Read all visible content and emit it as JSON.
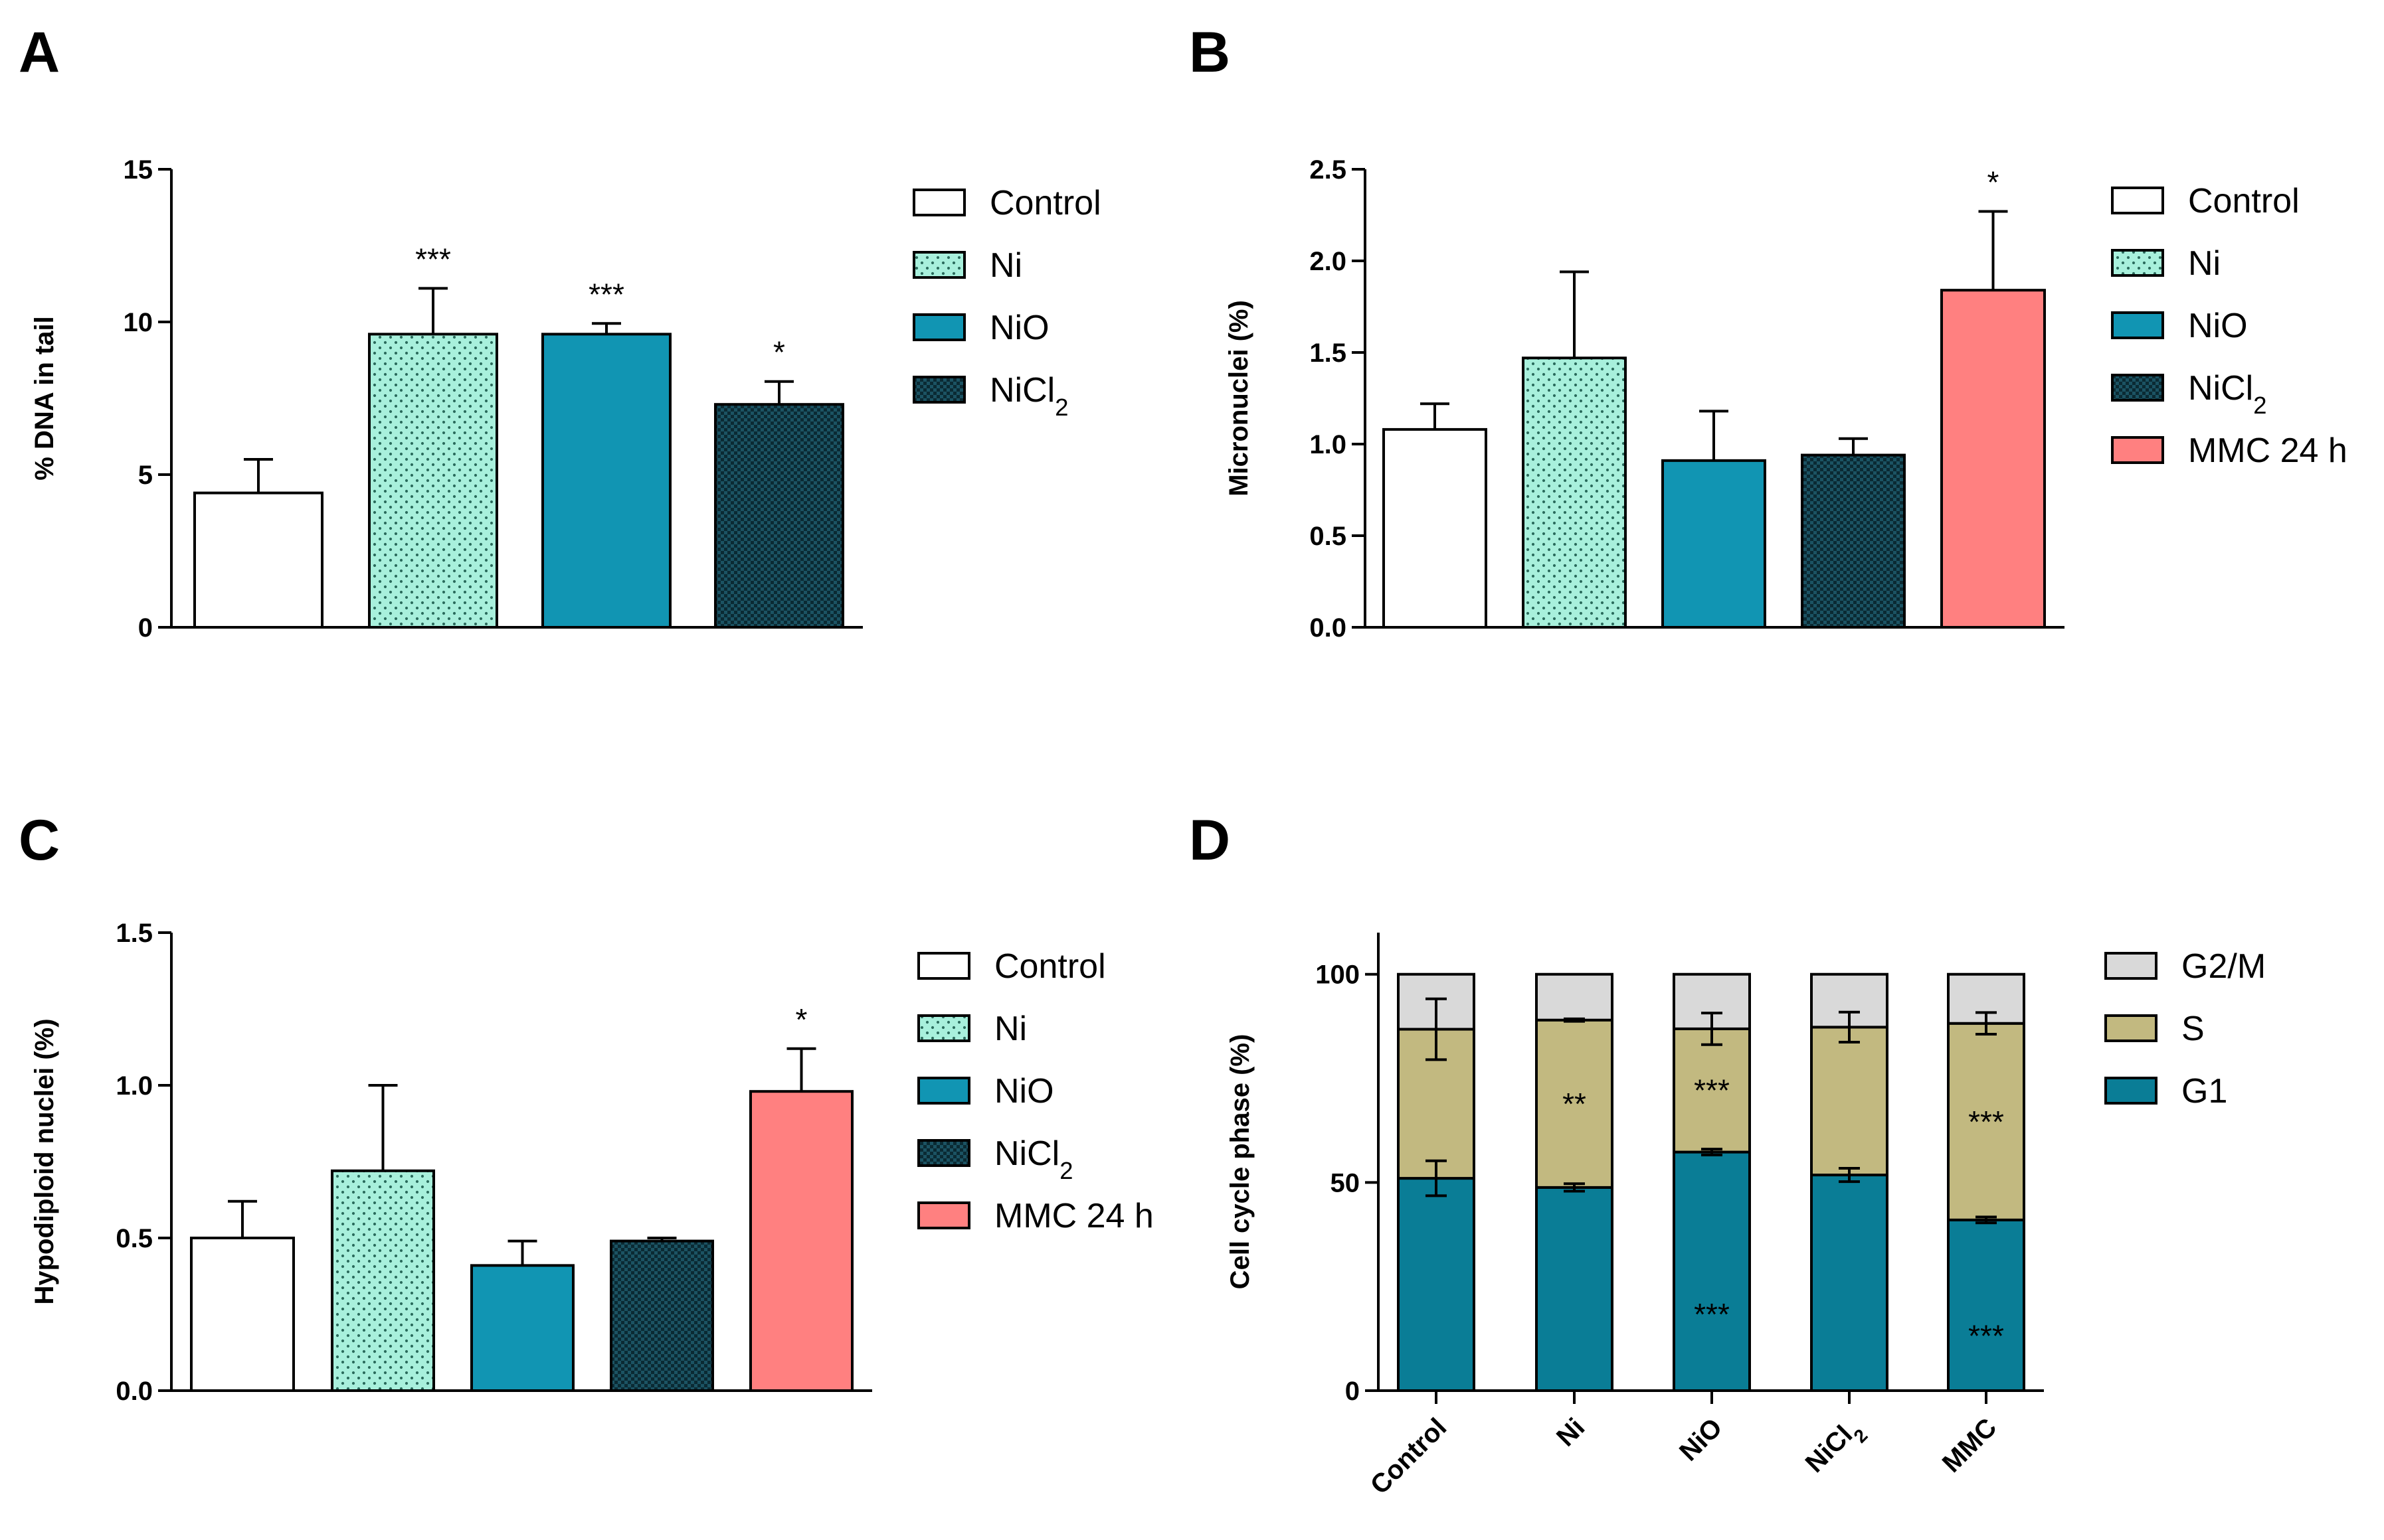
{
  "colors": {
    "control": "#ffffff",
    "ni": "#a8f0dc",
    "nio": "#1195b3",
    "nicl2": "#0d2f3a",
    "mmc": "#ff8080",
    "g1": "#0a7d96",
    "s": "#c2b980",
    "g2m": "#d9d9d9"
  },
  "chart_data": [
    {
      "panel": "A",
      "type": "bar",
      "ylabel": "% DNA in tail",
      "ylim": [
        0,
        15
      ],
      "yticks": [
        "0",
        "5",
        "10",
        "15"
      ],
      "categories": [
        "Control",
        "Ni",
        "NiO",
        "NiCl2"
      ],
      "values": [
        4.4,
        9.6,
        9.6,
        7.3
      ],
      "errors": [
        1.1,
        1.5,
        0.35,
        0.75
      ],
      "significance": [
        "",
        "***",
        "***",
        "*"
      ],
      "legend": [
        {
          "label": "Control",
          "sub": ""
        },
        {
          "label": "Ni",
          "sub": ""
        },
        {
          "label": "NiO",
          "sub": ""
        },
        {
          "label": "NiCl",
          "sub": "2"
        }
      ]
    },
    {
      "panel": "B",
      "type": "bar",
      "ylabel": "Micronuclei (%)",
      "ylim": [
        0,
        2.5
      ],
      "yticks": [
        "0.0",
        "0.5",
        "1.0",
        "1.5",
        "2.0",
        "2.5"
      ],
      "categories": [
        "Control",
        "Ni",
        "NiO",
        "NiCl2",
        "MMC 24 h"
      ],
      "values": [
        1.08,
        1.47,
        0.91,
        0.94,
        1.84
      ],
      "errors": [
        0.14,
        0.47,
        0.27,
        0.09,
        0.43
      ],
      "significance": [
        "",
        "",
        "",
        "",
        "*"
      ],
      "legend": [
        {
          "label": "Control",
          "sub": ""
        },
        {
          "label": "Ni",
          "sub": ""
        },
        {
          "label": "NiO",
          "sub": ""
        },
        {
          "label": "NiCl",
          "sub": "2"
        },
        {
          "label": "MMC 24 h",
          "sub": ""
        }
      ]
    },
    {
      "panel": "C",
      "type": "bar",
      "ylabel": "Hypodiploid nuclei (%)",
      "ylim": [
        0,
        1.5
      ],
      "yticks": [
        "0.0",
        "0.5",
        "1.0",
        "1.5"
      ],
      "categories": [
        "Control",
        "Ni",
        "NiO",
        "NiCl2",
        "MMC 24 h"
      ],
      "values": [
        0.5,
        0.72,
        0.41,
        0.49,
        0.98
      ],
      "errors": [
        0.12,
        0.28,
        0.08,
        0.01,
        0.14
      ],
      "significance": [
        "",
        "",
        "",
        "",
        "*"
      ],
      "legend": [
        {
          "label": "Control",
          "sub": ""
        },
        {
          "label": "Ni",
          "sub": ""
        },
        {
          "label": "NiO",
          "sub": ""
        },
        {
          "label": "NiCl",
          "sub": "2"
        },
        {
          "label": "MMC 24 h",
          "sub": ""
        }
      ]
    },
    {
      "panel": "D",
      "type": "bar",
      "stacked": true,
      "ylabel": "Cell cycle phase (%)",
      "ylim": [
        0,
        110
      ],
      "yticks": [
        "0",
        "50",
        "100"
      ],
      "categories": [
        {
          "label": "Control",
          "sub": ""
        },
        {
          "label": "Ni",
          "sub": ""
        },
        {
          "label": "NiO",
          "sub": ""
        },
        {
          "label": "NiCl",
          "sub": "2"
        },
        {
          "label": "MMC",
          "sub": ""
        }
      ],
      "series": [
        {
          "name": "G1",
          "values": [
            51,
            48.8,
            57.3,
            51.8,
            41
          ],
          "errors": [
            4.2,
            0.9,
            0.7,
            1.6,
            0.7
          ],
          "significance": [
            "",
            "",
            "***",
            "",
            "***"
          ]
        },
        {
          "name": "S",
          "values": [
            35.8,
            40.2,
            29.6,
            35.5,
            47.2
          ],
          "errors": [
            7.3,
            0.3,
            3.8,
            3.6,
            2.6
          ],
          "significance": [
            "",
            "**",
            "***",
            "",
            "***"
          ]
        },
        {
          "name": "G2/M",
          "values": [
            13.2,
            11,
            13.1,
            12.7,
            11.8
          ]
        }
      ],
      "legend": [
        {
          "label": "G2/M",
          "sub": ""
        },
        {
          "label": "S",
          "sub": ""
        },
        {
          "label": "G1",
          "sub": ""
        }
      ]
    }
  ]
}
